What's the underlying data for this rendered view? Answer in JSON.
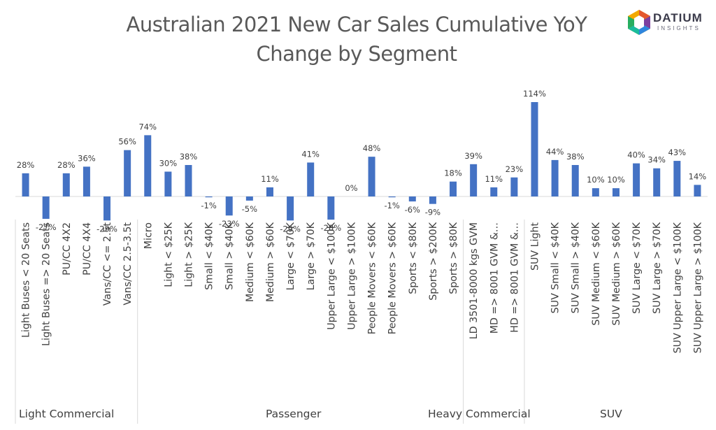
{
  "chart_data": {
    "type": "bar",
    "title": "Australian 2021 New Car Sales Cumulative YoY Change by Segment",
    "title_lines": [
      "Australian 2021 New Car Sales Cumulative YoY",
      "Change by Segment"
    ],
    "categories": [
      "Light Buses < 20 Seats",
      "Light Buses => 20 Seats",
      "PU/CC 4X2",
      "PU/CC 4X4",
      "Vans/CC <= 2.5t",
      "Vans/CC 2.5-3.5t",
      "Micro",
      "Light < $25K",
      "Light > $25K",
      "Small < $40K",
      "Small > $40K",
      "Medium < $60K",
      "Medium > $60K",
      "Large < $70K",
      "Large > $70K",
      "Upper Large < $100K",
      "Upper Large > $100K",
      "People Movers < $60K",
      "People Movers > $60K",
      "Sports < $80K",
      "Sports > $200K",
      "Sports > $80K",
      "LD 3501-8000 kgs GVM",
      "MD => 8001 GVM &…",
      "HD => 8001 GVM &…",
      "SUV Light",
      "SUV Small < $40K",
      "SUV Small > $40K",
      "SUV Medium < $60K",
      "SUV Medium > $60K",
      "SUV Large < $70K",
      "SUV Large > $70K",
      "SUV Upper Large < $100K",
      "SUV Upper Large > $100K"
    ],
    "values": [
      28,
      -27,
      28,
      36,
      -29,
      56,
      74,
      30,
      38,
      -1,
      -23,
      -5,
      11,
      -29,
      41,
      -28,
      0,
      48,
      -1,
      -6,
      -9,
      18,
      39,
      11,
      23,
      114,
      44,
      38,
      10,
      10,
      40,
      34,
      43,
      14
    ],
    "value_labels": [
      "28%",
      "-27%",
      "28%",
      "36%",
      "-29%",
      "56%",
      "74%",
      "30%",
      "38%",
      "-1%",
      "-23%",
      "-5%",
      "11%",
      "-29%",
      "41%",
      "-28%",
      "0%",
      "48%",
      "-1%",
      "-6%",
      "-9%",
      "18%",
      "39%",
      "11%",
      "23%",
      "114%",
      "44%",
      "38%",
      "10%",
      "10%",
      "40%",
      "34%",
      "43%",
      "14%"
    ],
    "groups": [
      {
        "name": "Light Commercial",
        "start": 0,
        "end": 5
      },
      {
        "name": "Passenger",
        "start": 6,
        "end": 21
      },
      {
        "name": "Heavy Commercial",
        "start": 22,
        "end": 24
      },
      {
        "name": "SUV",
        "start": 25,
        "end": 33
      }
    ],
    "xlabel": "",
    "ylabel": "",
    "ylim": [
      -40,
      120
    ],
    "grid": false,
    "legend": "none",
    "bar_color": "#4472c4"
  },
  "brand": {
    "name": "DATIUM",
    "tagline": "INSIGHTS"
  }
}
